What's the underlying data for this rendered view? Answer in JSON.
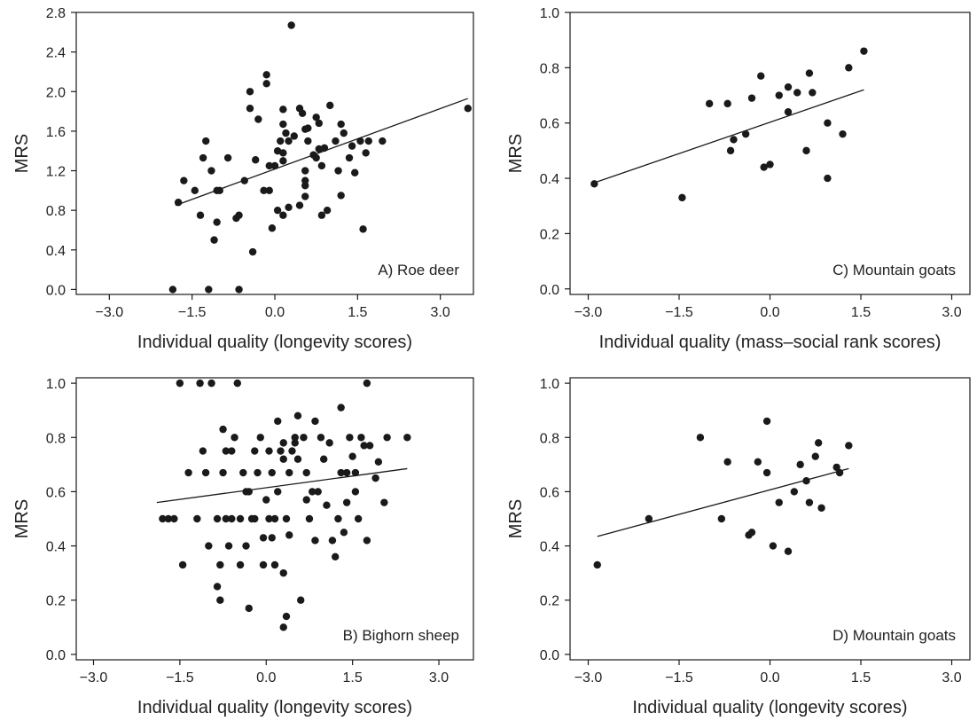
{
  "figure": {
    "colors": {
      "ink": "#1a1a1a",
      "point": "#1a1a1a",
      "background": "#ffffff"
    }
  },
  "chart_data": [
    {
      "id": "A",
      "type": "scatter",
      "title": "",
      "panel_label": "A) Roe deer",
      "xlabel": "Individual quality (longevity scores)",
      "ylabel": "MRS",
      "xlim": [
        -3.6,
        3.6
      ],
      "ylim": [
        -0.05,
        2.8
      ],
      "xticks": [
        -3.0,
        -1.5,
        0.0,
        1.5,
        3.0
      ],
      "xtick_labels": [
        "−3.0",
        "−1.5",
        "0.0",
        "1.5",
        "3.0"
      ],
      "yticks": [
        0.0,
        0.4,
        0.8,
        1.2,
        1.6,
        2.0,
        2.4,
        2.8
      ],
      "ytick_labels": [
        "0.0",
        "0.4",
        "0.8",
        "1.2",
        "1.6",
        "2.0",
        "2.4",
        "2.8"
      ],
      "fit_line": {
        "x": [
          -1.8,
          3.5
        ],
        "y": [
          0.85,
          1.93
        ]
      },
      "points": [
        [
          -1.85,
          0.0
        ],
        [
          -1.75,
          0.88
        ],
        [
          -1.65,
          1.1
        ],
        [
          -1.45,
          1.0
        ],
        [
          -1.35,
          0.75
        ],
        [
          -1.3,
          1.33
        ],
        [
          -1.25,
          1.5
        ],
        [
          -1.2,
          0.0
        ],
        [
          -1.15,
          1.2
        ],
        [
          -1.1,
          0.5
        ],
        [
          -1.05,
          0.68
        ],
        [
          -1.05,
          1.0
        ],
        [
          -1.0,
          1.0
        ],
        [
          -0.85,
          1.33
        ],
        [
          -0.7,
          0.72
        ],
        [
          -0.65,
          0.75
        ],
        [
          -0.65,
          0.0
        ],
        [
          -0.55,
          1.1
        ],
        [
          -0.45,
          2.0
        ],
        [
          -0.45,
          1.83
        ],
        [
          -0.4,
          0.38
        ],
        [
          -0.35,
          1.31
        ],
        [
          -0.3,
          1.72
        ],
        [
          -0.2,
          1.0
        ],
        [
          -0.15,
          2.17
        ],
        [
          -0.15,
          2.08
        ],
        [
          -0.1,
          1.25
        ],
        [
          -0.1,
          1.0
        ],
        [
          -0.05,
          0.62
        ],
        [
          0.0,
          1.25
        ],
        [
          0.05,
          0.8
        ],
        [
          0.05,
          1.4
        ],
        [
          0.1,
          1.5
        ],
        [
          0.15,
          1.82
        ],
        [
          0.15,
          1.67
        ],
        [
          0.15,
          1.38
        ],
        [
          0.15,
          1.3
        ],
        [
          0.15,
          0.75
        ],
        [
          0.2,
          1.58
        ],
        [
          0.25,
          1.5
        ],
        [
          0.25,
          0.83
        ],
        [
          0.3,
          2.67
        ],
        [
          0.35,
          1.55
        ],
        [
          0.45,
          1.83
        ],
        [
          0.45,
          0.85
        ],
        [
          0.5,
          1.78
        ],
        [
          0.55,
          1.62
        ],
        [
          0.55,
          1.2
        ],
        [
          0.55,
          1.1
        ],
        [
          0.55,
          1.05
        ],
        [
          0.55,
          0.94
        ],
        [
          0.6,
          1.5
        ],
        [
          0.6,
          1.63
        ],
        [
          0.7,
          1.36
        ],
        [
          0.75,
          1.33
        ],
        [
          0.75,
          1.74
        ],
        [
          0.8,
          1.68
        ],
        [
          0.8,
          1.42
        ],
        [
          0.85,
          0.75
        ],
        [
          0.85,
          1.25
        ],
        [
          0.9,
          1.43
        ],
        [
          0.95,
          0.8
        ],
        [
          1.0,
          1.86
        ],
        [
          1.1,
          1.5
        ],
        [
          1.15,
          1.2
        ],
        [
          1.2,
          1.67
        ],
        [
          1.2,
          0.95
        ],
        [
          1.25,
          1.58
        ],
        [
          1.35,
          1.33
        ],
        [
          1.4,
          1.45
        ],
        [
          1.45,
          1.18
        ],
        [
          1.55,
          1.5
        ],
        [
          1.6,
          0.61
        ],
        [
          1.65,
          1.38
        ],
        [
          1.7,
          1.5
        ],
        [
          1.95,
          1.5
        ],
        [
          3.5,
          1.83
        ]
      ]
    },
    {
      "id": "C",
      "type": "scatter",
      "title": "",
      "panel_label": "C) Mountain goats",
      "xlabel": "Individual quality (mass–social rank scores)",
      "ylabel": "MRS",
      "xlim": [
        -3.3,
        3.3
      ],
      "ylim": [
        -0.02,
        1.0
      ],
      "xticks": [
        -3.0,
        -1.5,
        0.0,
        1.5,
        3.0
      ],
      "xtick_labels": [
        "−3.0",
        "−1.5",
        "0.0",
        "1.5",
        "3.0"
      ],
      "yticks": [
        0.0,
        0.2,
        0.4,
        0.6,
        0.8,
        1.0
      ],
      "ytick_labels": [
        "0.0",
        "0.2",
        "0.4",
        "0.6",
        "0.8",
        "1.0"
      ],
      "fit_line": {
        "x": [
          -2.95,
          1.55
        ],
        "y": [
          0.38,
          0.72
        ]
      },
      "points": [
        [
          -2.9,
          0.38
        ],
        [
          -1.45,
          0.33
        ],
        [
          -1.0,
          0.67
        ],
        [
          -0.7,
          0.67
        ],
        [
          -0.65,
          0.5
        ],
        [
          -0.6,
          0.54
        ],
        [
          -0.4,
          0.56
        ],
        [
          -0.3,
          0.69
        ],
        [
          -0.15,
          0.77
        ],
        [
          -0.1,
          0.44
        ],
        [
          0.0,
          0.45
        ],
        [
          0.15,
          0.7
        ],
        [
          0.3,
          0.73
        ],
        [
          0.3,
          0.64
        ],
        [
          0.45,
          0.71
        ],
        [
          0.6,
          0.5
        ],
        [
          0.65,
          0.78
        ],
        [
          0.7,
          0.71
        ],
        [
          0.95,
          0.4
        ],
        [
          0.95,
          0.6
        ],
        [
          1.2,
          0.56
        ],
        [
          1.3,
          0.8
        ],
        [
          1.55,
          0.86
        ]
      ]
    },
    {
      "id": "B",
      "type": "scatter",
      "title": "",
      "panel_label": "B) Bighorn sheep",
      "xlabel": "Individual quality (longevity scores)",
      "ylabel": "MRS",
      "xlim": [
        -3.3,
        3.6
      ],
      "ylim": [
        -0.02,
        1.02
      ],
      "xticks": [
        -3.0,
        -1.5,
        0.0,
        1.5,
        3.0
      ],
      "xtick_labels": [
        "−3.0",
        "−1.5",
        "0.0",
        "1.5",
        "3.0"
      ],
      "yticks": [
        0.0,
        0.2,
        0.4,
        0.6,
        0.8,
        1.0
      ],
      "ytick_labels": [
        "0.0",
        "0.2",
        "0.4",
        "0.6",
        "0.8",
        "1.0"
      ],
      "fit_line": {
        "x": [
          -1.9,
          2.45
        ],
        "y": [
          0.56,
          0.685
        ]
      },
      "points": [
        [
          -1.8,
          0.5
        ],
        [
          -1.7,
          0.5
        ],
        [
          -1.6,
          0.5
        ],
        [
          -1.45,
          0.33
        ],
        [
          -1.35,
          0.67
        ],
        [
          -1.5,
          1.0
        ],
        [
          -1.15,
          1.0
        ],
        [
          -1.2,
          0.5
        ],
        [
          -1.1,
          0.75
        ],
        [
          -1.05,
          0.67
        ],
        [
          -1.0,
          0.4
        ],
        [
          -0.95,
          1.0
        ],
        [
          -0.85,
          0.5
        ],
        [
          -0.85,
          0.25
        ],
        [
          -0.8,
          0.2
        ],
        [
          -0.8,
          0.33
        ],
        [
          -0.75,
          0.67
        ],
        [
          -0.75,
          0.83
        ],
        [
          -0.7,
          0.75
        ],
        [
          -0.7,
          0.5
        ],
        [
          -0.65,
          0.4
        ],
        [
          -0.6,
          0.5
        ],
        [
          -0.6,
          0.75
        ],
        [
          -0.55,
          0.8
        ],
        [
          -0.5,
          1.0
        ],
        [
          -0.45,
          0.33
        ],
        [
          -0.45,
          0.5
        ],
        [
          -0.4,
          0.67
        ],
        [
          -0.35,
          0.4
        ],
        [
          -0.35,
          0.6
        ],
        [
          -0.3,
          0.6
        ],
        [
          -0.3,
          0.17
        ],
        [
          -0.25,
          0.5
        ],
        [
          -0.2,
          0.75
        ],
        [
          -0.2,
          0.5
        ],
        [
          -0.15,
          0.67
        ],
        [
          -0.1,
          0.8
        ],
        [
          -0.05,
          0.43
        ],
        [
          -0.05,
          0.33
        ],
        [
          0.0,
          0.57
        ],
        [
          0.05,
          0.5
        ],
        [
          0.05,
          0.75
        ],
        [
          0.1,
          0.67
        ],
        [
          0.1,
          0.43
        ],
        [
          0.15,
          0.33
        ],
        [
          0.15,
          0.5
        ],
        [
          0.2,
          0.86
        ],
        [
          0.2,
          0.6
        ],
        [
          0.25,
          0.75
        ],
        [
          0.3,
          0.72
        ],
        [
          0.3,
          0.78
        ],
        [
          0.3,
          0.1
        ],
        [
          0.3,
          0.3
        ],
        [
          0.35,
          0.14
        ],
        [
          0.35,
          0.5
        ],
        [
          0.4,
          0.44
        ],
        [
          0.4,
          0.67
        ],
        [
          0.45,
          0.75
        ],
        [
          0.5,
          0.8
        ],
        [
          0.5,
          0.78
        ],
        [
          0.55,
          0.72
        ],
        [
          0.55,
          0.88
        ],
        [
          0.6,
          0.2
        ],
        [
          0.65,
          0.8
        ],
        [
          0.7,
          0.67
        ],
        [
          0.7,
          0.57
        ],
        [
          0.75,
          0.5
        ],
        [
          0.8,
          0.6
        ],
        [
          0.85,
          0.86
        ],
        [
          0.85,
          0.42
        ],
        [
          0.9,
          0.6
        ],
        [
          0.95,
          0.8
        ],
        [
          1.0,
          0.72
        ],
        [
          1.05,
          0.55
        ],
        [
          1.1,
          0.78
        ],
        [
          1.15,
          0.42
        ],
        [
          1.2,
          0.36
        ],
        [
          1.25,
          0.5
        ],
        [
          1.3,
          0.67
        ],
        [
          1.3,
          0.91
        ],
        [
          1.35,
          0.45
        ],
        [
          1.4,
          0.56
        ],
        [
          1.45,
          0.8
        ],
        [
          1.5,
          0.73
        ],
        [
          1.55,
          0.67
        ],
        [
          1.6,
          0.5
        ],
        [
          1.65,
          0.8
        ],
        [
          1.7,
          0.77
        ],
        [
          1.75,
          0.42
        ],
        [
          1.8,
          0.77
        ],
        [
          1.75,
          1.0
        ],
        [
          1.9,
          0.65
        ],
        [
          1.95,
          0.71
        ],
        [
          2.05,
          0.56
        ],
        [
          2.1,
          0.8
        ],
        [
          2.45,
          0.8
        ],
        [
          1.55,
          0.6
        ],
        [
          1.4,
          0.67
        ]
      ]
    },
    {
      "id": "D",
      "type": "scatter",
      "title": "",
      "panel_label": "D) Mountain goats",
      "xlabel": "Individual quality (longevity scores)",
      "ylabel": "MRS",
      "xlim": [
        -3.3,
        3.3
      ],
      "ylim": [
        -0.02,
        1.02
      ],
      "xticks": [
        -3.0,
        -1.5,
        0.0,
        1.5,
        3.0
      ],
      "xtick_labels": [
        "−3.0",
        "−1.5",
        "0.0",
        "1.5",
        "3.0"
      ],
      "yticks": [
        0.0,
        0.2,
        0.4,
        0.6,
        0.8,
        1.0
      ],
      "ytick_labels": [
        "0.0",
        "0.2",
        "0.4",
        "0.6",
        "0.8",
        "1.0"
      ],
      "fit_line": {
        "x": [
          -2.85,
          1.3
        ],
        "y": [
          0.435,
          0.685
        ]
      },
      "points": [
        [
          -2.85,
          0.33
        ],
        [
          -2.0,
          0.5
        ],
        [
          -1.15,
          0.8
        ],
        [
          -0.8,
          0.5
        ],
        [
          -0.7,
          0.71
        ],
        [
          -0.35,
          0.44
        ],
        [
          -0.3,
          0.45
        ],
        [
          -0.2,
          0.71
        ],
        [
          -0.05,
          0.86
        ],
        [
          -0.05,
          0.67
        ],
        [
          0.05,
          0.4
        ],
        [
          0.15,
          0.56
        ],
        [
          0.3,
          0.38
        ],
        [
          0.4,
          0.6
        ],
        [
          0.5,
          0.7
        ],
        [
          0.6,
          0.64
        ],
        [
          0.65,
          0.56
        ],
        [
          0.75,
          0.73
        ],
        [
          0.8,
          0.78
        ],
        [
          0.85,
          0.54
        ],
        [
          1.1,
          0.69
        ],
        [
          1.15,
          0.67
        ],
        [
          1.3,
          0.77
        ]
      ]
    }
  ]
}
